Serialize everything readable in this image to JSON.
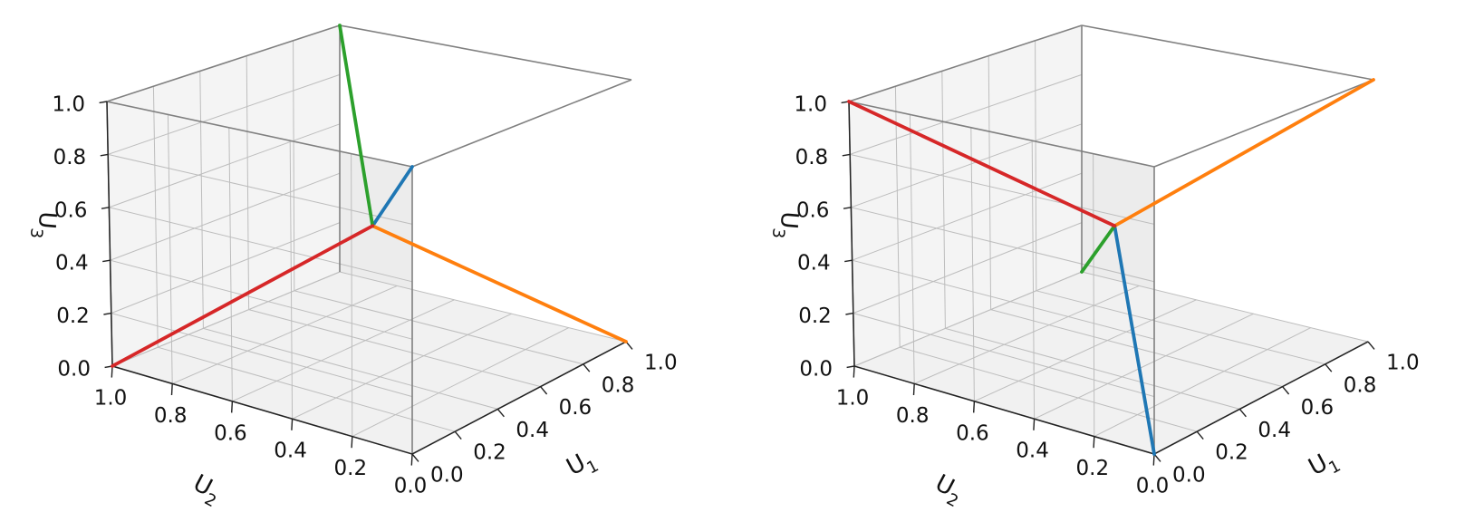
{
  "chart_data": [
    {
      "type": "line",
      "projection": "3d",
      "title": "",
      "xlabel": "U_1",
      "ylabel": "U_2",
      "zlabel": "U_3",
      "xlim": [
        0.0,
        1.0
      ],
      "ylim": [
        0.0,
        1.0
      ],
      "zlim": [
        0.0,
        1.0
      ],
      "x_ticks": [
        "0.0",
        "0.2",
        "0.4",
        "0.6",
        "0.8",
        "1.0"
      ],
      "y_ticks": [
        "1.0",
        "0.8",
        "0.6",
        "0.4",
        "0.2",
        "0.0"
      ],
      "z_ticks": [
        "0.0",
        "0.2",
        "0.4",
        "0.6",
        "0.8",
        "1.0"
      ],
      "grid": true,
      "center": [
        0.5,
        0.5,
        0.5
      ],
      "series": [
        {
          "color": "#1f77b4",
          "points": [
            [
              0.5,
              0.5,
              0.5
            ],
            [
              0.0,
              0.0,
              1.0
            ]
          ]
        },
        {
          "color": "#ff7f0e",
          "points": [
            [
              0.5,
              0.5,
              0.5
            ],
            [
              1.0,
              0.0,
              0.0
            ]
          ]
        },
        {
          "color": "#2ca02c",
          "points": [
            [
              0.5,
              0.5,
              0.5
            ],
            [
              1.0,
              1.0,
              1.0
            ]
          ]
        },
        {
          "color": "#d62728",
          "points": [
            [
              0.5,
              0.5,
              0.5
            ],
            [
              0.0,
              1.0,
              0.0
            ]
          ]
        }
      ]
    },
    {
      "type": "line",
      "projection": "3d",
      "title": "",
      "xlabel": "U_1",
      "ylabel": "U_2",
      "zlabel": "U_3",
      "xlim": [
        0.0,
        1.0
      ],
      "ylim": [
        0.0,
        1.0
      ],
      "zlim": [
        0.0,
        1.0
      ],
      "x_ticks": [
        "0.0",
        "0.2",
        "0.4",
        "0.6",
        "0.8",
        "1.0"
      ],
      "y_ticks": [
        "1.0",
        "0.8",
        "0.6",
        "0.4",
        "0.2",
        "0.0"
      ],
      "z_ticks": [
        "0.0",
        "0.2",
        "0.4",
        "0.6",
        "0.8",
        "1.0"
      ],
      "grid": true,
      "center": [
        0.5,
        0.5,
        0.5
      ],
      "series": [
        {
          "color": "#1f77b4",
          "points": [
            [
              0.5,
              0.5,
              0.5
            ],
            [
              0.0,
              0.0,
              0.0
            ]
          ]
        },
        {
          "color": "#ff7f0e",
          "points": [
            [
              0.5,
              0.5,
              0.5
            ],
            [
              1.0,
              0.0,
              1.0
            ]
          ]
        },
        {
          "color": "#2ca02c",
          "points": [
            [
              0.5,
              0.5,
              0.5
            ],
            [
              1.0,
              1.0,
              0.0
            ]
          ]
        },
        {
          "color": "#d62728",
          "points": [
            [
              0.5,
              0.5,
              0.5
            ],
            [
              0.0,
              1.0,
              1.0
            ]
          ]
        }
      ]
    }
  ]
}
